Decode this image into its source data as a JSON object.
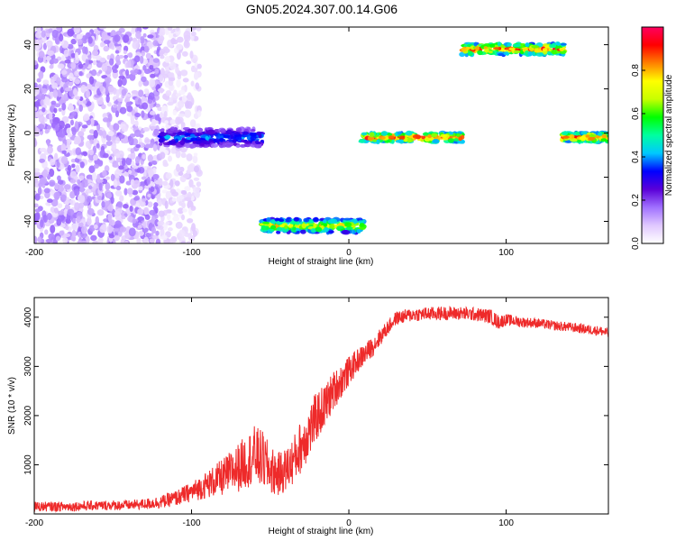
{
  "title": "GN05.2024.307.00.14.G06",
  "chart_data": [
    {
      "type": "heatmap",
      "xlabel": "Height of straight line (km)",
      "ylabel": "Frequency (Hz)",
      "xlim": [
        -200,
        165
      ],
      "ylim": [
        -50,
        48
      ],
      "x_ticks": [
        -200,
        -100,
        0,
        100
      ],
      "y_ticks": [
        -40,
        -20,
        0,
        20,
        40
      ],
      "colorbar": {
        "label": "Normalized spectral amplitude",
        "range": [
          0,
          1
        ],
        "ticks": [
          0.0,
          0.2,
          0.4,
          0.6,
          0.8
        ],
        "tick_labels": [
          "0.0",
          "0.2",
          "0.4",
          "0.6",
          "0.8"
        ],
        "colormap": [
          "#ffffff",
          "#e0c8ff",
          "#a070ff",
          "#5a00d8",
          "#0000ff",
          "#00c8ff",
          "#00ffa0",
          "#00ff00",
          "#c8ff00",
          "#ffff00",
          "#ff8000",
          "#ff0000",
          "#ff0060"
        ]
      },
      "regions": [
        {
          "name": "noise",
          "x": [
            -200,
            -120
          ],
          "y": [
            -50,
            48
          ],
          "amplitude": 0.1
        },
        {
          "name": "noise-tail",
          "x": [
            -120,
            -95
          ],
          "y": [
            -50,
            48
          ],
          "amplitude": 0.05
        },
        {
          "name": "band-a",
          "x": [
            -120,
            -55
          ],
          "y_center": -2,
          "half_height": 4,
          "amplitude": 0.4
        },
        {
          "name": "band-b",
          "x": [
            -55,
            10
          ],
          "y_center": -42,
          "half_height": 3,
          "amplitude": 0.75
        },
        {
          "name": "band-c",
          "x": [
            8,
            73
          ],
          "y_center": -2,
          "half_height": 2,
          "amplitude": 0.95
        },
        {
          "name": "band-d",
          "x": [
            72,
            137
          ],
          "y_center": 38,
          "half_height": 2.5,
          "amplitude": 0.9
        },
        {
          "name": "band-e",
          "x": [
            135,
            165
          ],
          "y_center": -2,
          "half_height": 2,
          "amplitude": 0.95
        }
      ]
    },
    {
      "type": "line",
      "xlabel": "Height of straight line (km)",
      "ylabel": "SNR (10 * v/v)",
      "xlim": [
        -200,
        165
      ],
      "ylim": [
        0,
        4400
      ],
      "x_ticks": [
        -200,
        -100,
        0,
        100
      ],
      "y_ticks": [
        1000,
        2000,
        3000,
        4000
      ],
      "color": "#ee2a2a",
      "x": [
        -200,
        -180,
        -160,
        -140,
        -130,
        -120,
        -110,
        -100,
        -90,
        -80,
        -70,
        -60,
        -55,
        -50,
        -45,
        -40,
        -35,
        -30,
        -25,
        -20,
        -15,
        -10,
        -5,
        0,
        5,
        10,
        15,
        20,
        25,
        30,
        40,
        50,
        60,
        70,
        80,
        90,
        95,
        100,
        110,
        120,
        130,
        140,
        150,
        160,
        165
      ],
      "y": [
        150,
        150,
        170,
        180,
        200,
        240,
        320,
        450,
        600,
        750,
        950,
        1200,
        1100,
        900,
        800,
        900,
        1100,
        1400,
        1700,
        2000,
        2200,
        2500,
        2700,
        2900,
        3100,
        3250,
        3400,
        3600,
        3800,
        3980,
        4050,
        4070,
        4080,
        4080,
        4060,
        4020,
        3900,
        3950,
        3900,
        3880,
        3830,
        3800,
        3760,
        3720,
        3680
      ],
      "noise": [
        100,
        100,
        100,
        100,
        110,
        130,
        160,
        200,
        280,
        380,
        500,
        600,
        600,
        500,
        450,
        450,
        500,
        550,
        550,
        500,
        450,
        400,
        350,
        300,
        250,
        220,
        200,
        180,
        150,
        140,
        140,
        140,
        140,
        140,
        140,
        150,
        150,
        120,
        110,
        100,
        100,
        100,
        100,
        100,
        100
      ]
    }
  ]
}
